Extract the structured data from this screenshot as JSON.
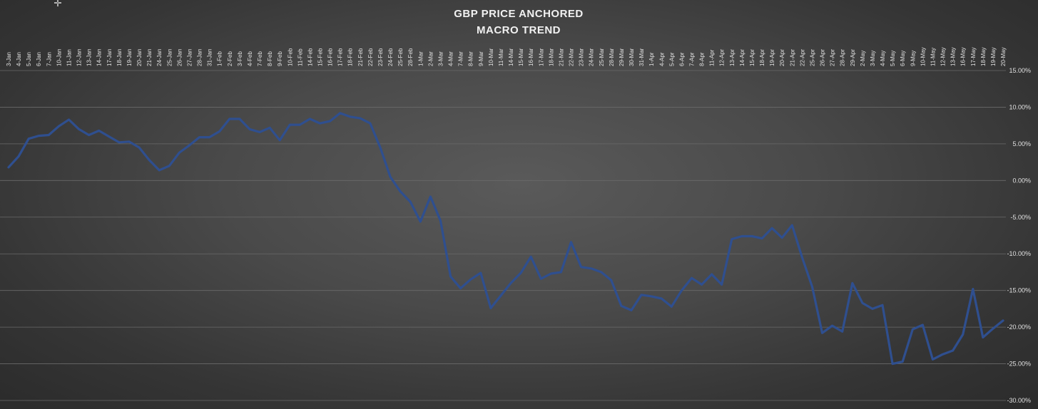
{
  "chart_data": {
    "type": "line",
    "title_lines": [
      "GBP PRICE ANCHORED",
      "MACRO TREND"
    ],
    "x_position": "top",
    "y_position": "right",
    "ylim": [
      -30,
      15
    ],
    "y_ticks": [
      15,
      10,
      5,
      0,
      -5,
      -10,
      -15,
      -20,
      -25,
      -30
    ],
    "y_tick_labels": [
      "15.00%",
      "10.00%",
      "5.00%",
      "0.00%",
      "-5.00%",
      "-10.00%",
      "-15.00%",
      "-20.00%",
      "-25.00%",
      "-30.00%"
    ],
    "grid": true,
    "line_color": "#2f4f8f",
    "categories": [
      "3-Jan",
      "4-Jan",
      "5-Jan",
      "6-Jan",
      "7-Jan",
      "10-Jan",
      "11-Jan",
      "12-Jan",
      "13-Jan",
      "14-Jan",
      "17-Jan",
      "18-Jan",
      "19-Jan",
      "20-Jan",
      "21-Jan",
      "24-Jan",
      "25-Jan",
      "26-Jan",
      "27-Jan",
      "28-Jan",
      "31-Jan",
      "1-Feb",
      "2-Feb",
      "3-Feb",
      "4-Feb",
      "7-Feb",
      "8-Feb",
      "9-Feb",
      "10-Feb",
      "11-Feb",
      "14-Feb",
      "15-Feb",
      "16-Feb",
      "17-Feb",
      "18-Feb",
      "21-Feb",
      "22-Feb",
      "23-Feb",
      "24-Feb",
      "25-Feb",
      "28-Feb",
      "1-Mar",
      "2-Mar",
      "3-Mar",
      "4-Mar",
      "7-Mar",
      "8-Mar",
      "9-Mar",
      "10-Mar",
      "11-Mar",
      "14-Mar",
      "15-Mar",
      "16-Mar",
      "17-Mar",
      "18-Mar",
      "21-Mar",
      "22-Mar",
      "23-Mar",
      "24-Mar",
      "25-Mar",
      "28-Mar",
      "29-Mar",
      "30-Mar",
      "31-Mar",
      "1-Apr",
      "4-Apr",
      "5-Apr",
      "6-Apr",
      "7-Apr",
      "8-Apr",
      "11-Apr",
      "12-Apr",
      "13-Apr",
      "14-Apr",
      "15-Apr",
      "18-Apr",
      "19-Apr",
      "20-Apr",
      "21-Apr",
      "22-Apr",
      "25-Apr",
      "26-Apr",
      "27-Apr",
      "28-Apr",
      "29-Apr",
      "2-May",
      "3-May",
      "4-May",
      "5-May",
      "6-May",
      "9-May",
      "10-May",
      "11-May",
      "12-May",
      "13-May",
      "16-May",
      "17-May",
      "18-May",
      "19-May",
      "20-May"
    ],
    "series": [
      {
        "values": [
          1.8,
          3.3,
          5.7,
          6.1,
          6.2,
          7.4,
          8.3,
          7,
          6.2,
          6.8,
          6,
          5.2,
          5.3,
          4.5,
          2.8,
          1.4,
          2,
          3.8,
          4.8,
          5.9,
          5.9,
          6.7,
          8.4,
          8.4,
          7,
          6.6,
          7.2,
          5.5,
          7.6,
          7.6,
          8.4,
          7.8,
          8.1,
          9.2,
          8.7,
          8.5,
          7.8,
          4.5,
          0.5,
          -1.5,
          -2.9,
          -5.6,
          -2.2,
          -5.5,
          -13.1,
          -14.7,
          -13.5,
          -12.6,
          -17.4,
          -15.7,
          -14,
          -12.6,
          -10.4,
          -13.4,
          -12.7,
          -12.5,
          -8.4,
          -11.8,
          -12,
          -12.5,
          -13.6,
          -17.1,
          -17.7,
          -15.6,
          -15.8,
          -16.1,
          -17.2,
          -15,
          -13.3,
          -14.2,
          -12.8,
          -14.2,
          -8,
          -7.6,
          -7.6,
          -7.9,
          -6.5,
          -7.8,
          -6.1,
          -10.5,
          -14.5,
          -20.8,
          -19.8,
          -20.6,
          -14,
          -16.7,
          -17.5,
          -17,
          -25,
          -24.7,
          -20.3,
          -19.7,
          -24.4,
          -23.7,
          -23.2,
          -21,
          -14.8,
          -21.4,
          -20.2,
          -19.1
        ]
      }
    ]
  }
}
